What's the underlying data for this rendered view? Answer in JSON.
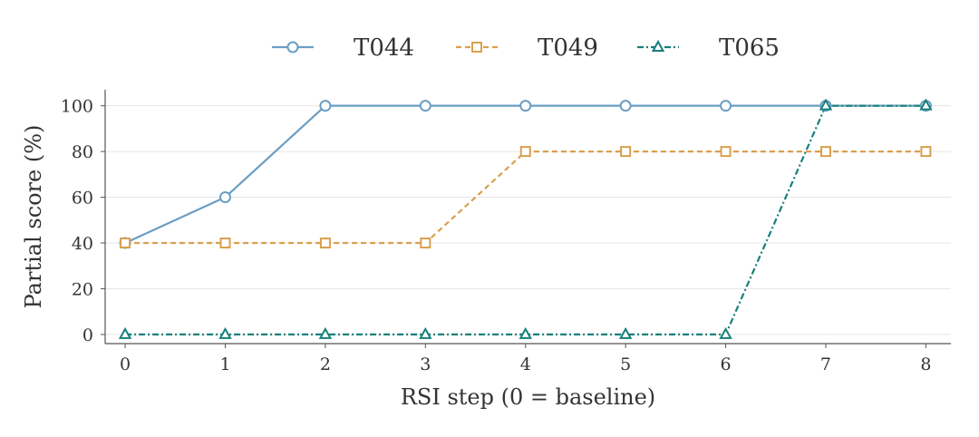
{
  "chart_data": {
    "type": "line",
    "xlabel": "RSI step (0 = baseline)",
    "ylabel": "Partial score (%)",
    "x": [
      0,
      1,
      2,
      3,
      4,
      5,
      6,
      7,
      8
    ],
    "xlim": [
      -0.2,
      8.25
    ],
    "ylim": [
      -4,
      107
    ],
    "xticks": [
      0,
      1,
      2,
      3,
      4,
      5,
      6,
      7,
      8
    ],
    "yticks": [
      0,
      20,
      40,
      60,
      80,
      100
    ],
    "grid": "horizontal",
    "legend": "top-center",
    "series": [
      {
        "name": "T044",
        "values": [
          40,
          60,
          100,
          100,
          100,
          100,
          100,
          100,
          100
        ],
        "color": "#6a9ec4",
        "marker": "circle",
        "linestyle": "solid"
      },
      {
        "name": "T049",
        "values": [
          40,
          40,
          40,
          40,
          80,
          80,
          80,
          80,
          80
        ],
        "color": "#d9a04e",
        "marker": "square",
        "linestyle": "dashed"
      },
      {
        "name": "T065",
        "values": [
          0,
          0,
          0,
          0,
          0,
          0,
          0,
          100,
          100
        ],
        "color": "#16807a",
        "marker": "triangle",
        "linestyle": "dashdot"
      }
    ]
  }
}
